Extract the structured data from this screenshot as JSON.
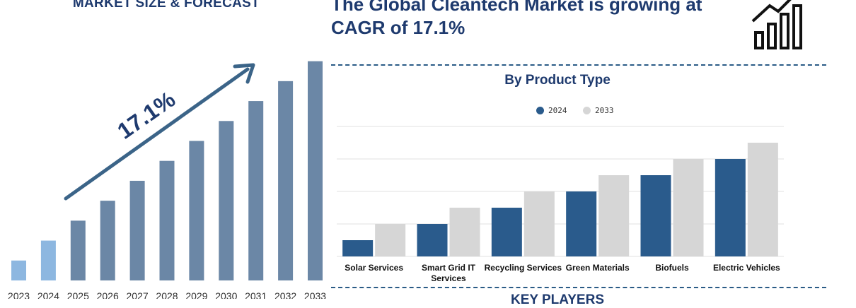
{
  "left_title": "MARKET SIZE & FORECAST",
  "headline_line1": "The Global Cleantech Market is growing at",
  "headline_line2": "CAGR of 17.1%",
  "cagr_label": "17.1%",
  "product_section_title": "By Product Type",
  "footer_title": "KEY PLAYERS",
  "colors": {
    "navy": "#1e3a6e",
    "bar_light": "#8db7e0",
    "bar_main": "#6b87a6",
    "series_2024": "#2a5b8c",
    "series_2033": "#d6d6d6",
    "arrow": "#3b6488"
  },
  "chart_data": [
    {
      "type": "bar",
      "title": "MARKET SIZE & FORECAST",
      "categories": [
        "2023",
        "2024",
        "2025",
        "2026",
        "2027",
        "2028",
        "2029",
        "2030",
        "2031",
        "2032",
        "2033"
      ],
      "values": [
        1.0,
        2.0,
        3.0,
        4.0,
        5.0,
        6.0,
        7.0,
        8.0,
        9.0,
        10.0,
        11.0
      ],
      "highlighted": [
        "2023",
        "2024"
      ],
      "annotation": "17.1%",
      "ylim": [
        0,
        11.2
      ]
    },
    {
      "type": "bar",
      "title": "By Product Type",
      "categories": [
        "Solar Services",
        "Smart Grid IT Services",
        "Recycling Services",
        "Green Materials",
        "Biofuels",
        "Electric Vehicles"
      ],
      "series": [
        {
          "name": "2024",
          "values": [
            1,
            2,
            3,
            4,
            5,
            6
          ]
        },
        {
          "name": "2033",
          "values": [
            2,
            3,
            4,
            5,
            6,
            7
          ]
        }
      ],
      "ylim": [
        0,
        8
      ],
      "legend": "top-center",
      "grid": true
    }
  ]
}
